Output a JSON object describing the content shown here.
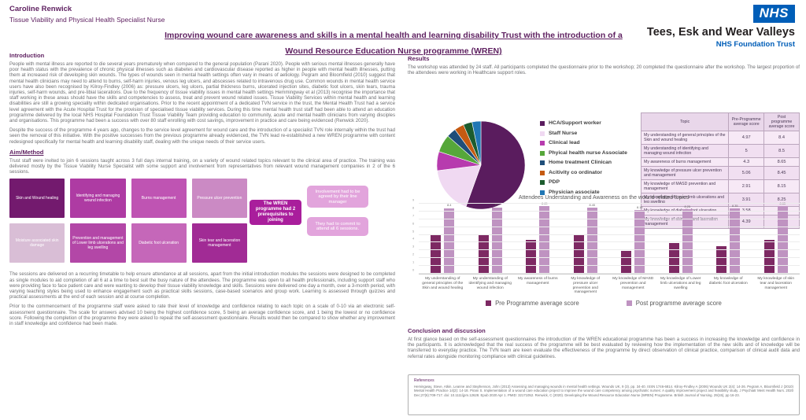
{
  "header": {
    "author": "Caroline Renwick",
    "author_role": "Tissue Viability and Physical Health Specialist Nurse",
    "title_line1": "Improving wound care awareness and skills in a mental health and learning disability Trust with the introduction of a",
    "title_line2": "Wound Resource Education Nurse programme (WREN)",
    "nhs_logo": "NHS",
    "trust_name": "Tees, Esk and Wear Valleys",
    "trust_subtitle": "NHS Foundation Trust"
  },
  "colors": {
    "brand_purple": "#5f2161",
    "nhs_blue": "#005eb8",
    "pre_bar": "#7d2963",
    "post_bar": "#bf93c1"
  },
  "introduction": {
    "heading": "Introduction",
    "para1": "People with mental illness are reported to die several years prematurely when compared to the general population (Parani 2020). People with serious mental illnesses generally have poor health status with the prevalence of chronic physical illnesses such as diabetes and cardiovascular disease reported as higher in people with mental health illnesses, putting them at increased risk of developing skin wounds. The types of wounds seen in mental health settings often vary in means of aetiology. Pegram and Bloomfield (2010) suggest that mental health clinicians may need to attend to burns, self-harm injuries, venous leg ulcers, and abscesses related to intravenous drug use. Common wounds in mental health service users have also been recognised by Kilroy-Findley (2006) as: pressure ulcers, leg ulcers, partial thickness burns, ulcerated injection sites, diabetic foot ulcers, skin tears, trauma injuries, self-harm wounds, and pre-tibial lacerations. Due to the frequency of tissue viability issues in mental health settings Hemmingway et al (2013) recognise the importance that staff working in these areas should have the skills and competencies to assess, treat and prevent wound related issues. Tissue Viability Services within mental health and learning disabilities are still a growing speciality within dedicated organisations. Prior to the recent appointment of a dedicated TVN service in the trust, the Mental Health Trust had a service level agreement with the Acute Hospital Trust for the provision of specialised tissue viability services. During this time mental health trust staff had been able to attend an education programme delivered by the local NHS Hospital Foundation Trust Tissue Viability Team providing education to community, acute and mental health clinicians from varying disciples and organisations. This programme had been a success with over 80 staff enrolling with cost savings, improvement in practice and care being evidenced (Renwick 2020).",
    "para2": "Despite the success of the programme 4 years ago, changes to the service level agreement for wound care and the introduction of a specialist TVN role internally within the trust had seen the removal of this initiative. With the positive successes from the previous programme already evidenced, the TVN lead re-established a new WREN programme with content redesigned specifically for mental health and learning disability staff, dealing with the unique needs of their service users."
  },
  "aim_method": {
    "heading": "Aim/Method",
    "para1": "Trust staff were invited to join 6 sessions taught across 3 full days internal training, on a variety of wound related topics relevant to the clinical area of practice. The training was delivered mostly by the Tissue Viability Nurse Specialist with some support and involvement from representatives from relevant wound management companies in 2 of the 6 sessions.",
    "topic_boxes": [
      {
        "label": "Skin and Wound healing",
        "color": "#731a6e"
      },
      {
        "label": "Identifying and managing wound infection",
        "color": "#ae3ba3"
      },
      {
        "label": "Burns management",
        "color": "#bf54b3"
      },
      {
        "label": "Pressure ulcer prevention",
        "color": "#cb8ac4"
      },
      {
        "label": "Moisture associated skin damage",
        "color": "#d9bed6"
      },
      {
        "label": "Prevention and management of Lower limb ulcerations and leg swelling",
        "color": "#b347a7"
      },
      {
        "label": "Diabetic foot ulceration",
        "color": "#c567b9"
      },
      {
        "label": "Skin tear and laceration management",
        "color": "#a12b95"
      }
    ],
    "wren_box": "The WREN programme had 2 prerequisites to joining",
    "prereq1": "Involvement had to be agreed by their line manager",
    "prereq2": "They had to commit to attend all 6 sessions.",
    "para2": "The sessions are delivered on a recurring timetable to help ensure attendance at all sessions, apart from the initial introduction modules the sessions were designed to be completed as single modules to aid completion of all 6 at a time to best suit the busy nature of the attendees. The programme was open to all health professionals, including support staff who were providing face to face patient care and were wanting to develop their tissue viability knowledge and skills. Sessions were delivered one day a month, over a 3-month period, with varying teaching styles being used to enhance engagement such as practical skills sessions, case-based scenarios and group work. Learning is assessed through quizzes and practical assessments at the end of each session and at course completion.",
    "para3": "Prior to the commencement of the programme staff were asked to rate their level of knowledge and confidence relating to each topic on a scale of 0-10  via an electronic self-assessment questionnaire. The scale for answers advised 10 being the highest confidence score, 5 being an average confidence score, and 1 being the lowest or no confidence score. Following the completion of the programme they were asked to repeat the self-assessment questionnaire. Results would then be compared to show whether any improvement in staff knowledge and confidence had been made."
  },
  "results": {
    "heading": "Results",
    "para": "The workshop was attended by 24 staff. All participants completed the questionnaire prior to the workshop; 20 completed the questionnaire after the workshop. The largest proportion of the attendees were working in Healthcare support roles."
  },
  "table": {
    "headers": [
      "Topic",
      "Pre-Programme average score",
      "Post programme average score"
    ],
    "rows": [
      {
        "topic": "My understanding of general principles of the Skin and wound healing",
        "pre": "4.97",
        "post": "8.4"
      },
      {
        "topic": "My understanding of identifying and managing wound infection",
        "pre": "5",
        "post": "8.5"
      },
      {
        "topic": "My awareness of burns management",
        "pre": "4.3",
        "post": "8.65"
      },
      {
        "topic": "My knowledge of pressure ulcer prevention and management",
        "pre": "5.06",
        "post": "8.45"
      },
      {
        "topic": "My knowledge of MASD prevention and management",
        "pre": "2.91",
        "post": "8.15"
      },
      {
        "topic": "My knowledge of Lower limb ulcerations and leg swelling",
        "pre": "3.91",
        "post": "8.25"
      },
      {
        "topic": "My knowledge of diabetic foot ulceration",
        "pre": "3.58",
        "post": "8.35"
      },
      {
        "topic": "My knowledge of skin tear and laceration management",
        "pre": "4.39",
        "post": "8.65"
      }
    ]
  },
  "chart_data": [
    {
      "type": "pie",
      "labels": [
        "HCA/Support worker",
        "Staff Nurse",
        "Clinical lead",
        "Phyical health nurse Associate",
        "Home treatment Clinican",
        "Acitivity co ordinator",
        "PDP",
        "Physician associate"
      ],
      "values": [
        55.5,
        17.5,
        7,
        6.5,
        3.5,
        3.5,
        3.25,
        3.25
      ],
      "values_note": "estimated percent of 24 attendees; slices unlabelled in source",
      "colors": [
        "#5a1c5e",
        "#f0d9f2",
        "#b73bae",
        "#56a73a",
        "#1f4e79",
        "#c55a11",
        "#1c5c2e",
        "#2077b4"
      ],
      "legend_position": "right"
    },
    {
      "type": "bar",
      "title": "Attendees Understanding and Awareness on the wound related topics",
      "categories": [
        "My understanding of general principles of the Skin and wound healing",
        "My understanding of identifying and managing wound infection",
        "My awareness of burns management",
        "My knowledge of pressure ulcer prevention and management",
        "My knowledge of MASD prevention and management",
        "My knowledge of Lower limb ulcerations and leg swelling",
        "My knowledge of diabetic foot ulceration",
        "My knowledge of skin tear and laceration management"
      ],
      "series": [
        {
          "name": "Pre Programme average score",
          "color": "#7d2963",
          "values": [
            4.97,
            5,
            4.3,
            5.06,
            2.91,
            3.91,
            3.58,
            4.39
          ]
        },
        {
          "name": "Post programme average score",
          "color": "#bf93c1",
          "values": [
            8.4,
            8.5,
            8.65,
            8.45,
            8.15,
            8.25,
            8.35,
            8.65
          ]
        }
      ],
      "ylim": [
        0,
        9
      ],
      "grid": true,
      "data_labels_on": "Post programme average score",
      "legend_position": "bottom"
    }
  ],
  "conclusion": {
    "heading": "Conclusion and discussion",
    "para": "At first glance based on the self-assessment questionnaires the introduction of the WREN educational programme has been a success in increasing the knowledge and confidence in the participants. It is acknowledged that the real success of the programme will be best evaluated by reviewing how the implementation of the new skills and of knowledge will be transferred to everyday practice. The TVN team are keen evaluate the effectiveness of the programme by direct observation of clinical practice, comparison of clinical audit data and referral rates alongside monitoring compliance with clinical guidelines."
  },
  "references": {
    "heading": "References",
    "text": "Hemingway, Steve, Atkin, Leanne and Stephenson, John (2013) Assessing and managing wounds in mental health settings. Wounds UK, 9 (3). pp. 34-40. ISSN 1746-6814.  Kilroy-Findley A (2006) Wounds UK 2(4): 14-26.  Pegram A, Bloomfield J (2010) Mental Health Practice 14(2): 14-18.  Pirani S. Implementation of a wound care education project to improve the wound care competency among psychiatric nurses: A quality improvement project and feasibility study. J Psychiatr Ment Health Nurs. 2020 Dec;27(6):709-717. doi: 10.1111/jpm.12628. Epub 2020 Apr 1. PMID: 32171052.  Renwick, C (2020). Developing the Wound Resource Education Nurse (WREN) Programme. British Journal of Nursing.  29(15), pp 16-23."
  }
}
